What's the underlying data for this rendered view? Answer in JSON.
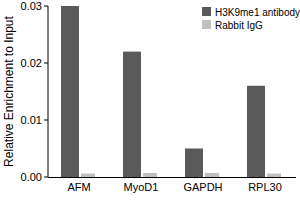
{
  "chart_data": {
    "type": "bar",
    "y_label": "Relative Enrichment to Input",
    "categories": [
      "AFM",
      "MyoD1",
      "GAPDH",
      "RPL30"
    ],
    "series": [
      {
        "name": "H3K9me1 antibody",
        "color": "#5a5a5a",
        "values": [
          0.03,
          0.022,
          0.005,
          0.016
        ]
      },
      {
        "name": "Rabbit IgG",
        "color": "#c0c0c0",
        "values": [
          0.0006,
          0.0007,
          0.0007,
          0.0006
        ]
      }
    ],
    "ylim": [
      0,
      0.03
    ],
    "yticks": [
      {
        "value": 0,
        "label": "0.00"
      },
      {
        "value": 0.01,
        "label": "0.01"
      },
      {
        "value": 0.02,
        "label": "0.02"
      },
      {
        "value": 0.03,
        "label": "0.03"
      }
    ],
    "grid": false,
    "legend": "upper right"
  }
}
